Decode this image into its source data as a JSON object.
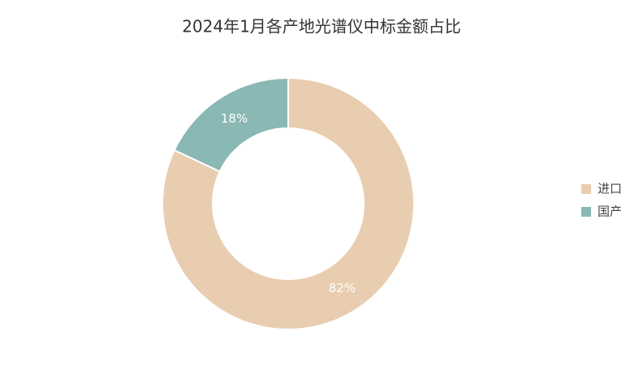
{
  "chart_data": {
    "type": "pie",
    "title": "2024年1月各产地光谱仪中标金额占比",
    "categories": [
      "进口",
      "国产"
    ],
    "values": [
      82,
      18
    ],
    "value_labels": [
      "82%",
      "18%"
    ],
    "colors": [
      "#e8cdb0",
      "#8ab8b4"
    ],
    "donut": true,
    "legend": "right"
  }
}
